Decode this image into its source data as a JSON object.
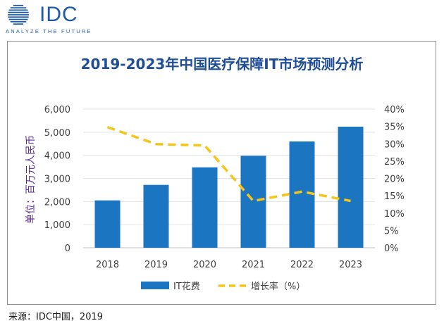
{
  "logo": {
    "brand": "IDC",
    "tagline": "ANALYZE THE FUTURE",
    "icon": "globe-icon",
    "color": "#1f5aa6"
  },
  "chart_data": {
    "type": "bar",
    "title": "2019-2023年中国医疗保障IT市场预测分析",
    "ylabel": "单位：百万元人民币",
    "categories": [
      "2018",
      "2019",
      "2020",
      "2021",
      "2022",
      "2023"
    ],
    "ylim": [
      0,
      6000
    ],
    "y_ticks": [
      "0",
      "1,000",
      "2,000",
      "3,000",
      "4,000",
      "5,000",
      "6,000"
    ],
    "y2lim": [
      0,
      40
    ],
    "y2_ticks": [
      "0%",
      "5%",
      "10%",
      "15%",
      "20%",
      "25%",
      "30%",
      "35%",
      "40%"
    ],
    "series": [
      {
        "name": "IT花费",
        "type": "bar",
        "axis": "left",
        "color": "#1b75c0",
        "values": [
          2050,
          2720,
          3480,
          3980,
          4600,
          5240
        ]
      },
      {
        "name": "增长率（%）",
        "type": "line",
        "axis": "right",
        "color": "#f5c518",
        "dashed": true,
        "values": [
          34.8,
          29.9,
          29.5,
          13.5,
          16.2,
          13.5
        ]
      }
    ],
    "legend_position": "bottom",
    "grid": true
  },
  "source": "来源：IDC中国，2019"
}
